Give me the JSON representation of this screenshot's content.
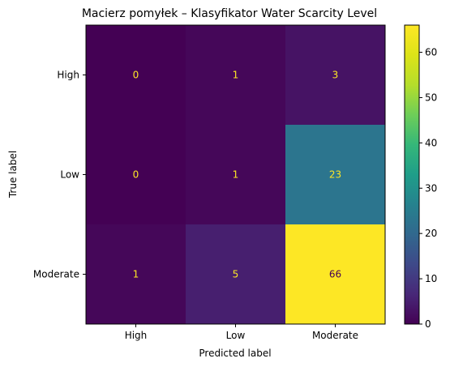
{
  "chart_data": {
    "type": "heatmap",
    "title": "Macierz pomyłek – Klasyfikator Water Scarcity Level",
    "xlabel": "Predicted label",
    "ylabel": "True label",
    "x_categories": [
      "High",
      "Low",
      "Moderate"
    ],
    "y_categories": [
      "High",
      "Low",
      "Moderate"
    ],
    "values": [
      [
        0,
        1,
        3
      ],
      [
        0,
        1,
        23
      ],
      [
        1,
        5,
        66
      ]
    ],
    "colormap": "viridis",
    "colorbar": {
      "range": [
        0,
        66
      ],
      "ticks": [
        "0",
        "10",
        "20",
        "30",
        "40",
        "50",
        "60"
      ]
    },
    "cell_label_colors": {
      "dark_cells": "#fde725",
      "bright_cells": "#440154"
    }
  }
}
